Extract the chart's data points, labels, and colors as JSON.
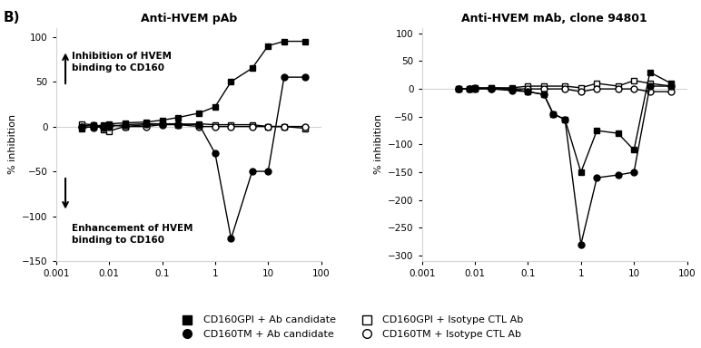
{
  "left_title": "Anti-HVEM pAb",
  "right_title": "Anti-HVEM mAb, clone 94801",
  "panel_label": "B)",
  "ylabel": "% inhibition",
  "annotation_top": "Inhibition of HVEM\nbinding to CD160",
  "annotation_bottom": "Enhancement of HVEM\nbinding to CD160",
  "left": {
    "xlim": [
      0.001,
      100
    ],
    "ylim": [
      -150,
      110
    ],
    "yticks": [
      -150,
      -100,
      -50,
      0,
      50,
      100
    ],
    "gpi_ab_x": [
      0.003,
      0.005,
      0.008,
      0.01,
      0.02,
      0.05,
      0.1,
      0.2,
      0.5,
      1,
      2,
      5,
      10,
      20,
      50
    ],
    "gpi_ab_y": [
      -2,
      0,
      2,
      3,
      4,
      5,
      7,
      10,
      15,
      22,
      50,
      65,
      90,
      95,
      95
    ],
    "tm_ab_x": [
      0.003,
      0.005,
      0.008,
      0.01,
      0.02,
      0.05,
      0.1,
      0.2,
      0.5,
      1,
      2,
      5,
      10,
      20,
      50
    ],
    "tm_ab_y": [
      0,
      2,
      -1,
      0,
      2,
      3,
      3,
      3,
      2,
      -30,
      -125,
      -50,
      -50,
      55,
      55
    ],
    "gpi_ctl_x": [
      0.003,
      0.005,
      0.008,
      0.01,
      0.02,
      0.05,
      0.1,
      0.2,
      0.5,
      1,
      2,
      5,
      10,
      20,
      50
    ],
    "gpi_ctl_y": [
      3,
      2,
      -3,
      -5,
      0,
      2,
      3,
      2,
      3,
      2,
      2,
      2,
      0,
      0,
      -2
    ],
    "tm_ctl_x": [
      0.003,
      0.005,
      0.008,
      0.01,
      0.02,
      0.05,
      0.1,
      0.2,
      0.5,
      1,
      2,
      5,
      10,
      20,
      50
    ],
    "tm_ctl_y": [
      0,
      -1,
      0,
      2,
      0,
      0,
      2,
      2,
      0,
      0,
      0,
      0,
      0,
      0,
      0
    ]
  },
  "right": {
    "xlim": [
      0.001,
      100
    ],
    "ylim": [
      -310,
      110
    ],
    "yticks": [
      -300,
      -250,
      -200,
      -150,
      -100,
      -50,
      0,
      50,
      100
    ],
    "gpi_ab_x": [
      0.005,
      0.008,
      0.01,
      0.02,
      0.05,
      0.1,
      0.2,
      0.3,
      0.5,
      1,
      2,
      5,
      10,
      20,
      50
    ],
    "gpi_ab_y": [
      0,
      0,
      2,
      2,
      0,
      -5,
      -10,
      -45,
      -55,
      -150,
      -75,
      -80,
      -110,
      30,
      10
    ],
    "tm_ab_x": [
      0.005,
      0.008,
      0.01,
      0.02,
      0.05,
      0.1,
      0.2,
      0.3,
      0.5,
      1,
      2,
      5,
      10,
      20,
      50
    ],
    "tm_ab_y": [
      0,
      0,
      2,
      0,
      -3,
      -5,
      -10,
      -45,
      -55,
      -280,
      -160,
      -155,
      -150,
      5,
      5
    ],
    "gpi_ctl_x": [
      0.005,
      0.008,
      0.01,
      0.02,
      0.05,
      0.1,
      0.2,
      0.5,
      1,
      2,
      5,
      10,
      20,
      50
    ],
    "gpi_ctl_y": [
      0,
      0,
      0,
      2,
      2,
      5,
      5,
      5,
      2,
      10,
      5,
      15,
      10,
      5
    ],
    "tm_ctl_x": [
      0.005,
      0.008,
      0.01,
      0.02,
      0.05,
      0.1,
      0.2,
      0.5,
      1,
      2,
      5,
      10,
      20,
      50
    ],
    "tm_ctl_y": [
      0,
      0,
      0,
      0,
      0,
      0,
      0,
      0,
      -5,
      0,
      0,
      0,
      -5,
      -5
    ]
  },
  "legend": [
    {
      "label": "CD160GPI + Ab candidate",
      "marker": "s",
      "filled": true
    },
    {
      "label": "CD160TM + Ab candidate",
      "marker": "o",
      "filled": true
    },
    {
      "label": "CD160GPI + Isotype CTL Ab",
      "marker": "s",
      "filled": false
    },
    {
      "label": "CD160TM + Isotype CTL Ab",
      "marker": "o",
      "filled": false
    }
  ],
  "line_color": "black",
  "fill_color": "black",
  "empty_color": "white",
  "background_color": "white"
}
